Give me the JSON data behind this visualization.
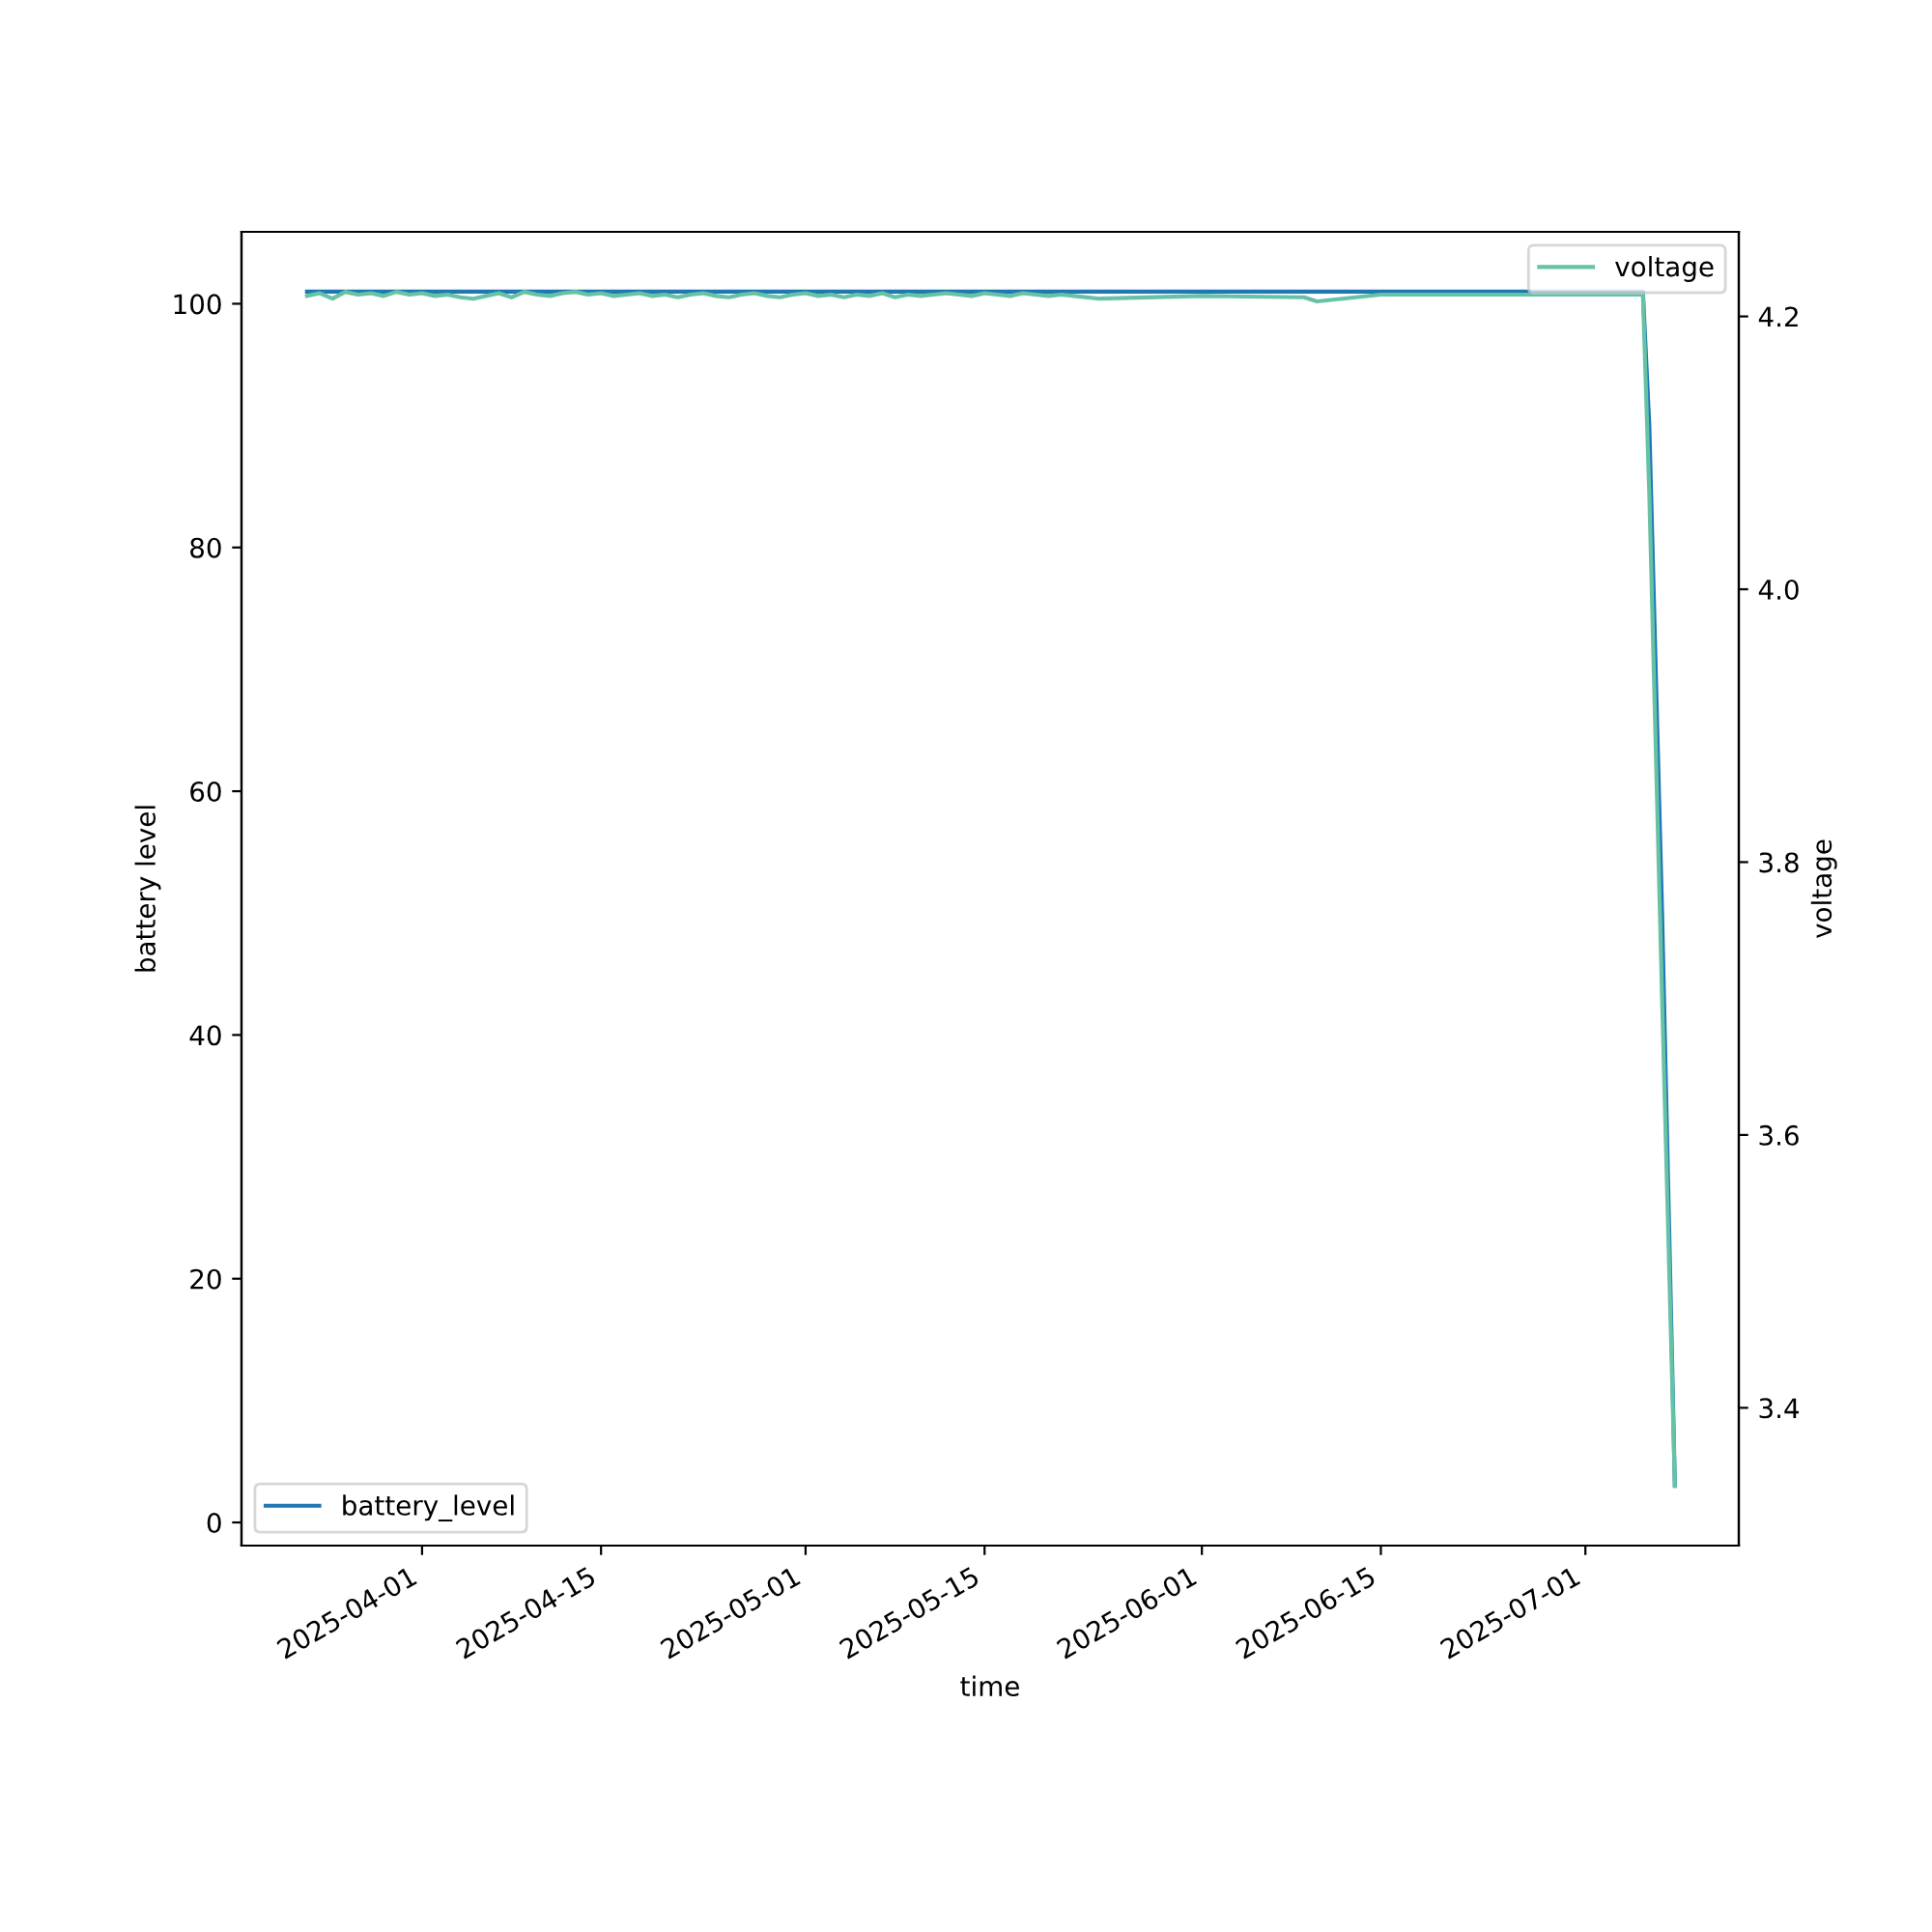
{
  "chart_data": {
    "type": "line",
    "xlabel": "time",
    "ylabel": "battery level",
    "y2label": "voltage",
    "xlim": [
      "2025-03-17T21:00",
      "2025-07-13T00:00"
    ],
    "xticks": [
      "2025-04-01",
      "2025-04-15",
      "2025-05-01",
      "2025-05-15",
      "2025-06-01",
      "2025-06-15",
      "2025-07-01"
    ],
    "ylim": [
      -1.9,
      105.9
    ],
    "yticks": [
      0,
      20,
      40,
      60,
      80,
      100
    ],
    "y2lim": [
      3.299,
      4.262
    ],
    "y2ticks": [
      3.4,
      3.6,
      3.8,
      {
        "value": 4,
        "label": "4.0"
      },
      4.2
    ],
    "legend": "bottom left",
    "grid": false,
    "series": [
      {
        "name": "battery_level",
        "color": "#1f77b4",
        "x": [
          "2025-03-23",
          "2025-07-05T12:00",
          "2025-07-06T00:00",
          "2025-07-07T00:00",
          "2025-07-08T00:00"
        ],
        "values": [
          101,
          101,
          90,
          50,
          3
        ]
      },
      {
        "name": "voltage",
        "color": "#66c2a5",
        "axis": "y2",
        "x": [
          "2025-03-23",
          "2025-03-24",
          "2025-03-25",
          "2025-03-26",
          "2025-03-27",
          "2025-03-28",
          "2025-03-29",
          "2025-03-30",
          "2025-03-31",
          "2025-04-01",
          "2025-04-02",
          "2025-04-03",
          "2025-04-04",
          "2025-04-05",
          "2025-04-06",
          "2025-04-07",
          "2025-04-08",
          "2025-04-09",
          "2025-04-10",
          "2025-04-11",
          "2025-04-12",
          "2025-04-13",
          "2025-04-14",
          "2025-04-15",
          "2025-04-16",
          "2025-04-17",
          "2025-04-18",
          "2025-04-19",
          "2025-04-20",
          "2025-04-21",
          "2025-04-22",
          "2025-04-23",
          "2025-04-24",
          "2025-04-25",
          "2025-04-26",
          "2025-04-27",
          "2025-04-28",
          "2025-04-29",
          "2025-04-30",
          "2025-05-01",
          "2025-05-02",
          "2025-05-03",
          "2025-05-04",
          "2025-05-05",
          "2025-05-06",
          "2025-05-07",
          "2025-05-08",
          "2025-05-09",
          "2025-05-10",
          "2025-05-11",
          "2025-05-12",
          "2025-05-13",
          "2025-05-14",
          "2025-05-15",
          "2025-05-16",
          "2025-05-17",
          "2025-05-18",
          "2025-05-19",
          "2025-05-20",
          "2025-05-21",
          "2025-05-22",
          "2025-05-24",
          "2025-06-01",
          "2025-06-09",
          "2025-06-10",
          "2025-06-15",
          "2025-07-05T12:00",
          "2025-07-06T00:00",
          "2025-07-07T00:00",
          "2025-07-08T00:00"
        ],
        "values": [
          4.215,
          4.217,
          4.213,
          4.218,
          4.216,
          4.217,
          4.215,
          4.218,
          4.216,
          4.217,
          4.215,
          4.216,
          4.214,
          4.213,
          4.215,
          4.217,
          4.214,
          4.218,
          4.216,
          4.215,
          4.217,
          4.218,
          4.216,
          4.217,
          4.215,
          4.216,
          4.217,
          4.215,
          4.216,
          4.214,
          4.216,
          4.217,
          4.215,
          4.214,
          4.216,
          4.217,
          4.215,
          4.214,
          4.216,
          4.217,
          4.215,
          4.216,
          4.214,
          4.216,
          4.215,
          4.217,
          4.214,
          4.216,
          4.215,
          4.216,
          4.217,
          4.216,
          4.215,
          4.217,
          4.216,
          4.215,
          4.217,
          4.216,
          4.215,
          4.216,
          4.215,
          4.213,
          4.215,
          4.214,
          4.211,
          4.216,
          4.216,
          4.07,
          3.7,
          3.343
        ]
      }
    ]
  }
}
